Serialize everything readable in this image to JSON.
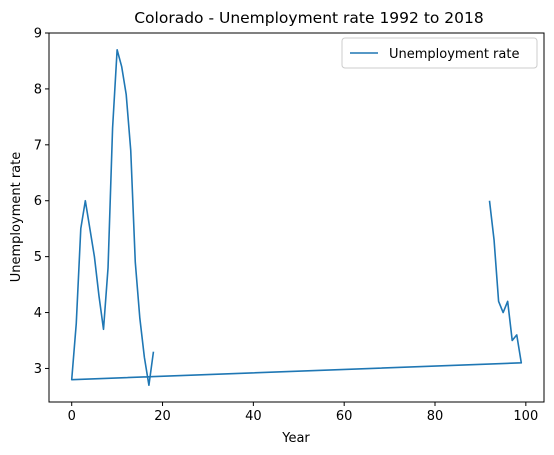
{
  "chart_data": {
    "type": "line",
    "title": "Colorado - Unemployment rate 1992 to 2018",
    "xlabel": "Year",
    "ylabel": "Unemployment rate",
    "xlim": [
      -5,
      104
    ],
    "ylim": [
      2.4,
      9.0
    ],
    "xticks": [
      0,
      20,
      40,
      60,
      80,
      100
    ],
    "yticks": [
      3,
      4,
      5,
      6,
      7,
      8,
      9
    ],
    "xtick_labels": [
      "0",
      "20",
      "40",
      "60",
      "80",
      "100"
    ],
    "ytick_labels": [
      "3",
      "4",
      "5",
      "6",
      "7",
      "8",
      "9"
    ],
    "grid": false,
    "legend_position": "top-right",
    "series": [
      {
        "name": "Unemployment rate",
        "color": "#1f77b4",
        "x": [
          92,
          93,
          94,
          95,
          96,
          97,
          98,
          99,
          0,
          1,
          2,
          3,
          4,
          5,
          6,
          7,
          8,
          9,
          10,
          11,
          12,
          13,
          14,
          15,
          16,
          17,
          18
        ],
        "y": [
          6.0,
          5.3,
          4.2,
          4.0,
          4.2,
          3.5,
          3.6,
          3.1,
          2.8,
          3.8,
          5.5,
          6.0,
          5.5,
          5.0,
          4.3,
          3.7,
          4.8,
          7.3,
          8.7,
          8.4,
          7.9,
          6.9,
          4.9,
          3.9,
          3.2,
          2.7,
          3.3
        ]
      }
    ]
  }
}
